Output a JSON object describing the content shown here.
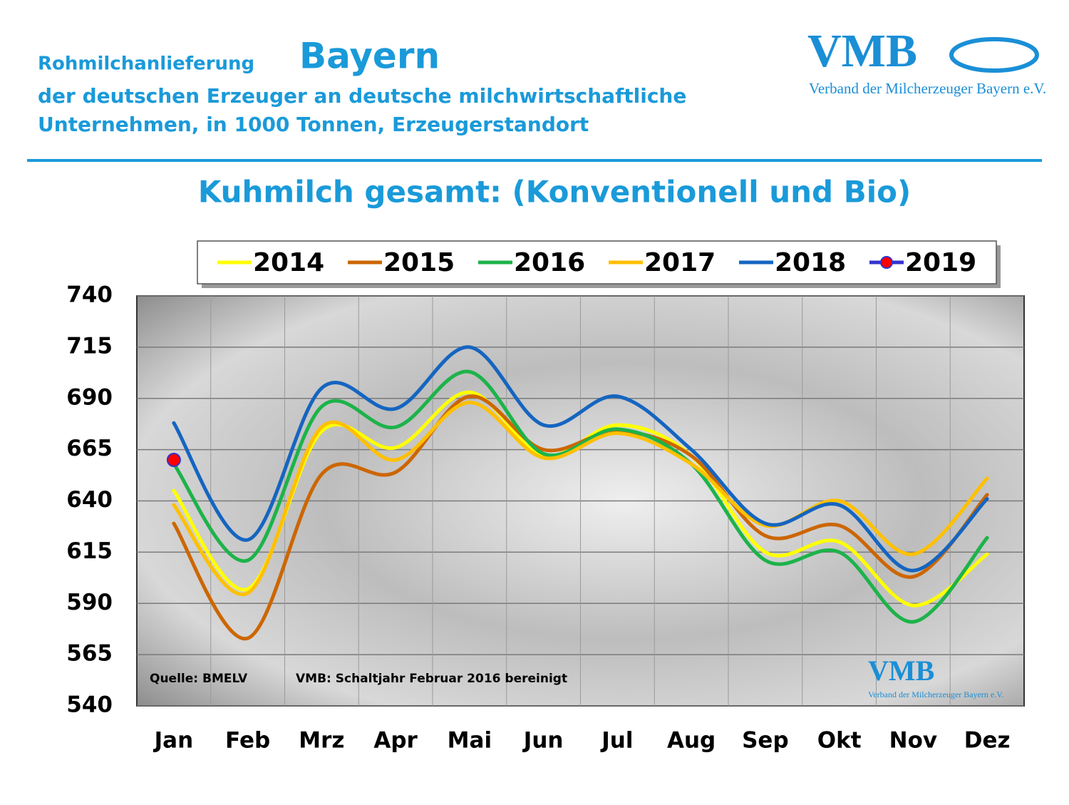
{
  "chart_data": {
    "type": "line",
    "header": "Rohmilchanlieferung",
    "region": "Bayern",
    "subtitle_lines": [
      "der deutschen Erzeuger an deutsche milchwirtschaftliche",
      "Unternehmen, in 1000 Tonnen, Erzeugerstandort"
    ],
    "title": "Kuhmilch gesamt: (Konventionell und Bio)",
    "logo": "VMB",
    "logo_text": "Verband der Milcherzeuger Bayern e.V.",
    "source": "Quelle: BMELV",
    "note": "VMB: Schaltjahr  Februar  2016  bereinigt",
    "categories": [
      "Jan",
      "Feb",
      "Mrz",
      "Apr",
      "Mai",
      "Jun",
      "Jul",
      "Aug",
      "Sep",
      "Okt",
      "Nov",
      "Dez"
    ],
    "series": [
      {
        "name": "2014",
        "color": "#ffff00",
        "values": [
          645,
          597,
          674,
          666,
          693,
          662,
          677,
          662,
          615,
          620,
          589,
          614
        ]
      },
      {
        "name": "2015",
        "color": "#cc6600",
        "values": [
          629,
          573,
          653,
          654,
          691,
          665,
          674,
          662,
          623,
          628,
          603,
          643
        ]
      },
      {
        "name": "2016",
        "color": "#1db34a",
        "values": [
          658,
          611,
          686,
          676,
          703,
          663,
          675,
          658,
          611,
          615,
          581,
          622
        ]
      },
      {
        "name": "2017",
        "color": "#ffc000",
        "values": [
          638,
          595,
          676,
          660,
          688,
          661,
          673,
          658,
          628,
          640,
          614,
          651
        ]
      },
      {
        "name": "2018",
        "color": "#1565c0",
        "values": [
          678,
          621,
          695,
          685,
          715,
          677,
          691,
          665,
          629,
          638,
          606,
          641
        ]
      },
      {
        "name": "2019",
        "color": "#3333cc",
        "marker_color": "#ff0000",
        "values": [
          660,
          null,
          null,
          null,
          null,
          null,
          null,
          null,
          null,
          null,
          null,
          null
        ]
      }
    ],
    "ylim": [
      540,
      740
    ],
    "yticks": [
      540,
      565,
      590,
      615,
      640,
      665,
      690,
      715,
      740
    ],
    "grid": true,
    "legend": "top"
  }
}
